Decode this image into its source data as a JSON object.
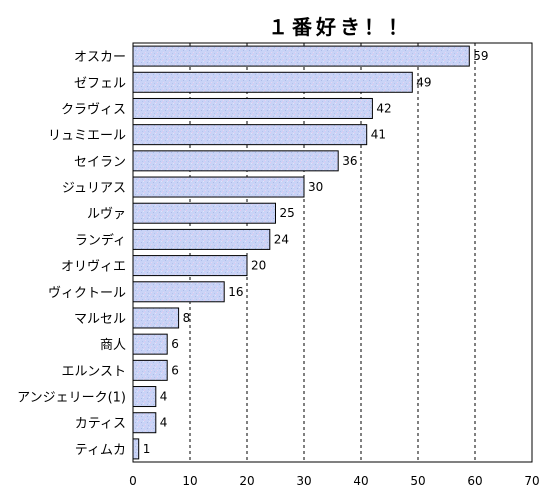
{
  "chart_data": {
    "type": "bar",
    "orientation": "horizontal",
    "title": "１番好き！！",
    "categories": [
      "オスカー",
      "ゼフェル",
      "クラヴィス",
      "リュミエール",
      "セイラン",
      "ジュリアス",
      "ルヴァ",
      "ランディ",
      "オリヴィエ",
      "ヴィクトール",
      "マルセル",
      "商人",
      "エルンスト",
      "アンジェリーク(1)",
      "カティス",
      "ティムカ"
    ],
    "values": [
      59,
      49,
      42,
      41,
      36,
      30,
      25,
      24,
      20,
      16,
      8,
      6,
      6,
      4,
      4,
      1
    ],
    "xlim": [
      0,
      70
    ],
    "xticks": [
      0,
      10,
      20,
      30,
      40,
      50,
      60,
      70
    ],
    "grid": "vertical dashed",
    "bar_color": "#c8d4f5",
    "bar_edge_color": "#000000"
  }
}
